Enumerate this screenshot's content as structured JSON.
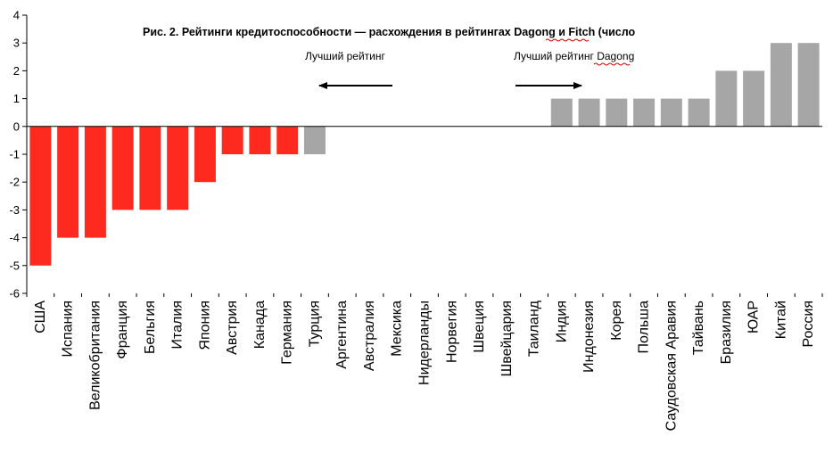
{
  "chart_data": {
    "type": "bar",
    "title": "Рис. 2.  Рейтинги кредитоспособности — расхождения в рейтингах  Dagong и Fitch (число",
    "xlabel": "",
    "ylabel": "",
    "ylim": [
      -6,
      4
    ],
    "yticks": [
      4,
      3,
      2,
      1,
      0,
      -1,
      -2,
      -3,
      -4,
      -5,
      -6
    ],
    "grid": false,
    "categories": [
      "США",
      "Испания",
      "Великобритания",
      "Франция",
      "Бельгия",
      "Италия",
      "Япония",
      "Австрия",
      "Канада",
      "Германия",
      "Турция",
      "Аргентина",
      "Австралия",
      "Мексика",
      "Нидерланды",
      "Норвегия",
      "Швеция",
      "Швейцария",
      "Таиланд",
      "Индия",
      "Индонезия",
      "Корея",
      "Польша",
      "Саудовская Аравия",
      "Тайвань",
      "Бразилия",
      "ЮАР",
      "Китай",
      "Россия"
    ],
    "values": [
      -5,
      -4,
      -4,
      -3,
      -3,
      -3,
      -2,
      -1,
      -1,
      -1,
      -1,
      0,
      0,
      0,
      0,
      0,
      0,
      0,
      0,
      1,
      1,
      1,
      1,
      1,
      1,
      2,
      2,
      3,
      3
    ],
    "bar_colors": [
      "#ff2a1f",
      "#ff2a1f",
      "#ff2a1f",
      "#ff2a1f",
      "#ff2a1f",
      "#ff2a1f",
      "#ff2a1f",
      "#ff2a1f",
      "#ff2a1f",
      "#ff2a1f",
      "#a6a6a6",
      "#a6a6a6",
      "#a6a6a6",
      "#a6a6a6",
      "#a6a6a6",
      "#a6a6a6",
      "#a6a6a6",
      "#a6a6a6",
      "#a6a6a6",
      "#a6a6a6",
      "#a6a6a6",
      "#a6a6a6",
      "#a6a6a6",
      "#a6a6a6",
      "#a6a6a6",
      "#a6a6a6",
      "#a6a6a6",
      "#a6a6a6",
      "#a6a6a6"
    ],
    "annotations": [
      {
        "text": "Лучший рейтинг",
        "arrow": "left"
      },
      {
        "text": "Лучший рейтинг Dagong",
        "arrow": "right"
      }
    ]
  }
}
